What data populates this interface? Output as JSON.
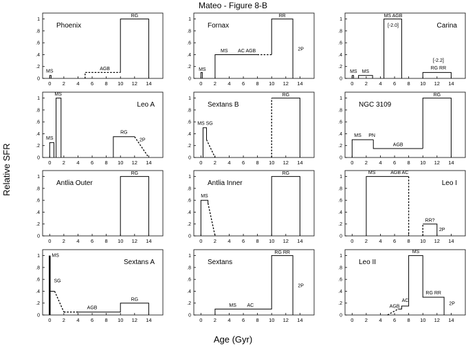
{
  "figure": {
    "title": "Mateo - Figure 8-B",
    "ylabel": "Relative SFR",
    "xlabel": "Age (Gyr)"
  },
  "axes": {
    "x_ticks": [
      "0",
      "2",
      "4",
      "6",
      "8",
      "10",
      "12",
      "14"
    ],
    "y_ticks": [
      "0",
      ".2",
      ".4",
      ".6",
      ".8",
      "1"
    ],
    "xlim": [
      -1,
      16
    ],
    "ylim": [
      0,
      1.1
    ]
  },
  "chart_data": [
    {
      "type": "line",
      "title": "Phoenix",
      "title_align": "left",
      "series": [
        {
          "x": [
            0,
            0,
            0.2,
            0.2
          ],
          "y": [
            0,
            0.05,
            0.05,
            0
          ],
          "style": "solid"
        },
        {
          "x": [
            5,
            5,
            10
          ],
          "y": [
            0,
            0.1,
            0.1
          ],
          "style": "dotted"
        },
        {
          "x": [
            10,
            10,
            14,
            14
          ],
          "y": [
            0.1,
            1,
            1,
            0
          ],
          "style": "solid"
        }
      ],
      "labels": [
        {
          "text": "MS",
          "x": 0.0,
          "y": 0.1
        },
        {
          "text": "AGB",
          "x": 7.8,
          "y": 0.14
        },
        {
          "text": "RG",
          "x": 12,
          "y": 1.03
        }
      ]
    },
    {
      "type": "line",
      "title": "Fornax",
      "title_align": "left",
      "series": [
        {
          "x": [
            0,
            0,
            0.2,
            0.2
          ],
          "y": [
            0,
            0.1,
            0.1,
            0
          ],
          "style": "solid"
        },
        {
          "x": [
            2,
            2,
            8
          ],
          "y": [
            0,
            0.4,
            0.4
          ],
          "style": "solid"
        },
        {
          "x": [
            8,
            10
          ],
          "y": [
            0.4,
            0.4
          ],
          "style": "dotted"
        },
        {
          "x": [
            10,
            10,
            13,
            13
          ],
          "y": [
            0.4,
            1,
            1,
            0
          ],
          "style": "solid"
        }
      ],
      "labels": [
        {
          "text": "MS",
          "x": 0.2,
          "y": 0.13
        },
        {
          "text": "MS",
          "x": 3.3,
          "y": 0.44
        },
        {
          "text": "AC AGB",
          "x": 6.5,
          "y": 0.44
        },
        {
          "text": "RR",
          "x": 11.5,
          "y": 1.03
        },
        {
          "text": "2P",
          "x": 13.7,
          "y": 0.47,
          "anchor": "start"
        }
      ]
    },
    {
      "type": "line",
      "title": "Carina",
      "title_align": "right",
      "series": [
        {
          "x": [
            0,
            0,
            0.2,
            0.2
          ],
          "y": [
            0,
            0.05,
            0.05,
            0
          ],
          "style": "solid"
        },
        {
          "x": [
            0.9,
            0.9,
            2.9,
            2.9
          ],
          "y": [
            0,
            0.05,
            0.05,
            0
          ],
          "style": "solid"
        },
        {
          "x": [
            4.5,
            4.5,
            7,
            7
          ],
          "y": [
            0,
            1,
            1,
            0
          ],
          "style": "solid"
        },
        {
          "x": [
            10,
            10,
            14,
            14
          ],
          "y": [
            0,
            0.1,
            0.1,
            0
          ],
          "style": "solid"
        }
      ],
      "labels": [
        {
          "text": "MS",
          "x": 0.2,
          "y": 0.09
        },
        {
          "text": "MS",
          "x": 1.9,
          "y": 0.09
        },
        {
          "text": "MS AGB",
          "x": 5.8,
          "y": 1.03
        },
        {
          "text": "[-2.0]",
          "x": 5.8,
          "y": 0.87
        },
        {
          "text": "[-2.2]",
          "x": 12.2,
          "y": 0.28
        },
        {
          "text": "RG  RR",
          "x": 12.2,
          "y": 0.15
        }
      ]
    },
    {
      "type": "line",
      "title": "Leo A",
      "title_align": "right",
      "series": [
        {
          "x": [
            0,
            0,
            0.6,
            0.6
          ],
          "y": [
            0,
            0.25,
            0.25,
            0
          ],
          "style": "solid"
        },
        {
          "x": [
            0.9,
            0.9,
            1.6,
            1.6
          ],
          "y": [
            0,
            1,
            1,
            0
          ],
          "style": "solid"
        },
        {
          "x": [
            9,
            9,
            12
          ],
          "y": [
            0,
            0.35,
            0.35
          ],
          "style": "solid"
        },
        {
          "x": [
            12,
            14
          ],
          "y": [
            0.35,
            0
          ],
          "style": "dotted"
        }
      ],
      "labels": [
        {
          "text": "MS",
          "x": 0,
          "y": 0.3
        },
        {
          "text": "MS",
          "x": 1.2,
          "y": 1.04
        },
        {
          "text": "RG",
          "x": 10.5,
          "y": 0.4
        },
        {
          "text": "2P",
          "x": 12.7,
          "y": 0.27,
          "anchor": "start"
        }
      ]
    },
    {
      "type": "line",
      "title": "Sextans B",
      "title_align": "left",
      "series": [
        {
          "x": [
            0.3,
            0.3,
            0.8,
            0.8
          ],
          "y": [
            0,
            0.5,
            0.5,
            0.3
          ],
          "style": "solid"
        },
        {
          "x": [
            0.8,
            2
          ],
          "y": [
            0.3,
            0
          ],
          "style": "dotted"
        },
        {
          "x": [
            10,
            10
          ],
          "y": [
            0,
            1
          ],
          "style": "dotted"
        },
        {
          "x": [
            10,
            14,
            14
          ],
          "y": [
            1,
            1,
            0
          ],
          "style": "solid"
        }
      ],
      "labels": [
        {
          "text": "MS SG",
          "x": 0.6,
          "y": 0.55
        },
        {
          "text": "RG",
          "x": 12,
          "y": 1.03
        }
      ]
    },
    {
      "type": "line",
      "title": "NGC 3109",
      "title_align": "left",
      "series": [
        {
          "x": [
            0,
            0,
            3
          ],
          "y": [
            0,
            0.3,
            0.3
          ],
          "style": "solid"
        },
        {
          "x": [
            3,
            3,
            10
          ],
          "y": [
            0.3,
            0.15,
            0.15
          ],
          "style": "solid"
        },
        {
          "x": [
            10,
            10,
            14,
            14
          ],
          "y": [
            0.15,
            1,
            1,
            0
          ],
          "style": "solid"
        }
      ],
      "labels": [
        {
          "text": "MS",
          "x": 0.8,
          "y": 0.35
        },
        {
          "text": "PN",
          "x": 2.8,
          "y": 0.35
        },
        {
          "text": "AGB",
          "x": 6.5,
          "y": 0.19
        },
        {
          "text": "RG",
          "x": 12,
          "y": 1.03
        }
      ]
    },
    {
      "type": "line",
      "title": "Antlia Outer",
      "title_align": "left",
      "series": [
        {
          "x": [
            10,
            10,
            14,
            14
          ],
          "y": [
            0,
            1,
            1,
            0
          ],
          "style": "solid"
        }
      ],
      "labels": [
        {
          "text": "RG",
          "x": 12,
          "y": 1.03
        }
      ]
    },
    {
      "type": "line",
      "title": "Antlia Inner",
      "title_align": "left",
      "series": [
        {
          "x": [
            0,
            0,
            1,
            1
          ],
          "y": [
            0,
            0.6,
            0.6,
            0.55
          ],
          "style": "solid"
        },
        {
          "x": [
            1,
            2
          ],
          "y": [
            0.55,
            0
          ],
          "style": "dotted"
        },
        {
          "x": [
            10,
            10,
            14,
            14
          ],
          "y": [
            0,
            1,
            1,
            0
          ],
          "style": "solid"
        }
      ],
      "labels": [
        {
          "text": "MS",
          "x": 0.5,
          "y": 0.65
        },
        {
          "text": "RG",
          "x": 12,
          "y": 1.03
        }
      ]
    },
    {
      "type": "line",
      "title": "Leo I",
      "title_align": "right",
      "series": [
        {
          "x": [
            2,
            2,
            8
          ],
          "y": [
            0,
            1,
            1
          ],
          "style": "solid"
        },
        {
          "x": [
            8,
            8
          ],
          "y": [
            1,
            0
          ],
          "style": "dotted"
        },
        {
          "x": [
            10,
            10
          ],
          "y": [
            0,
            0.2
          ],
          "style": "dotted"
        },
        {
          "x": [
            10,
            12,
            12
          ],
          "y": [
            0.2,
            0.2,
            0
          ],
          "style": "solid"
        }
      ],
      "labels": [
        {
          "text": "MS",
          "x": 2.8,
          "y": 1.04
        },
        {
          "text": "AGB  AC",
          "x": 6.7,
          "y": 1.04
        },
        {
          "text": "RR?",
          "x": 11,
          "y": 0.24
        },
        {
          "text": "2P",
          "x": 12.3,
          "y": 0.08,
          "anchor": "start"
        }
      ]
    },
    {
      "type": "line",
      "title": "Sextans A",
      "title_align": "right",
      "series": [
        {
          "x": [
            0,
            0
          ],
          "y": [
            0,
            1
          ],
          "style": "solid",
          "width": 2.5
        },
        {
          "x": [
            0,
            0.7
          ],
          "y": [
            0.4,
            0.4
          ],
          "style": "solid"
        },
        {
          "x": [
            0.7,
            2
          ],
          "y": [
            0.4,
            0.05
          ],
          "style": "dotted"
        },
        {
          "x": [
            2,
            4
          ],
          "y": [
            0.05,
            0.05
          ],
          "style": "dotted"
        },
        {
          "x": [
            4,
            10,
            10,
            14,
            14
          ],
          "y": [
            0.05,
            0.05,
            0.2,
            0.2,
            0
          ],
          "style": "solid"
        }
      ],
      "labels": [
        {
          "text": "MS",
          "x": 0.3,
          "y": 0.98,
          "anchor": "start"
        },
        {
          "text": "SG",
          "x": 0.6,
          "y": 0.55,
          "anchor": "start"
        },
        {
          "text": "AGB",
          "x": 6,
          "y": 0.1
        },
        {
          "text": "RG",
          "x": 12,
          "y": 0.24
        }
      ]
    },
    {
      "type": "line",
      "title": "Sextans",
      "title_align": "left",
      "series": [
        {
          "x": [
            2,
            2,
            10,
            10,
            13,
            13
          ],
          "y": [
            0,
            0.1,
            0.1,
            1,
            1,
            0
          ],
          "style": "solid"
        }
      ],
      "labels": [
        {
          "text": "MS",
          "x": 4.5,
          "y": 0.14
        },
        {
          "text": "AC",
          "x": 7,
          "y": 0.14
        },
        {
          "text": "RG  RR",
          "x": 11.5,
          "y": 1.03
        },
        {
          "text": "2P",
          "x": 13.7,
          "y": 0.47,
          "anchor": "start"
        }
      ]
    },
    {
      "type": "line",
      "title": "Leo II",
      "title_align": "left",
      "series": [
        {
          "x": [
            5,
            6.5
          ],
          "y": [
            0,
            0.1
          ],
          "style": "dotted"
        },
        {
          "x": [
            6.5,
            7,
            7,
            8,
            8,
            10,
            10,
            13,
            13
          ],
          "y": [
            0.1,
            0.1,
            0.15,
            0.15,
            1,
            1,
            0.3,
            0.3,
            0
          ],
          "style": "solid"
        }
      ],
      "labels": [
        {
          "text": "AGB",
          "x": 6,
          "y": 0.12
        },
        {
          "text": "AC",
          "x": 7.5,
          "y": 0.22
        },
        {
          "text": "MS",
          "x": 9,
          "y": 1.04
        },
        {
          "text": "RG  RR",
          "x": 11.5,
          "y": 0.35
        },
        {
          "text": "2P",
          "x": 13.7,
          "y": 0.17,
          "anchor": "start"
        }
      ]
    }
  ]
}
